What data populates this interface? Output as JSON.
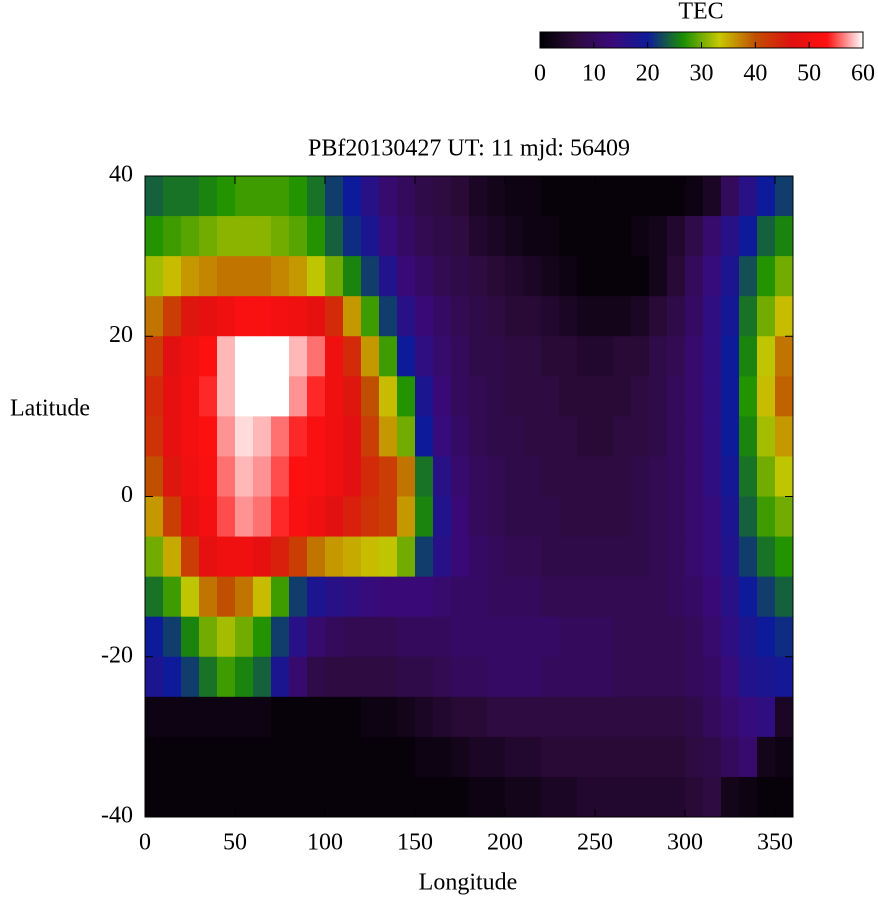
{
  "chart_data": {
    "type": "heatmap",
    "title": "PBf20130427  UT: 11  mjd: 56409",
    "xlabel": "Longitude",
    "ylabel": "Latitude",
    "colorbar_label": "TEC",
    "xlim": [
      0,
      360
    ],
    "ylim": [
      -40,
      40
    ],
    "zlim": [
      0,
      60
    ],
    "xticks": [
      0,
      50,
      100,
      150,
      200,
      250,
      300,
      350
    ],
    "yticks": [
      -40,
      -20,
      0,
      20,
      40
    ],
    "zticks": [
      0,
      10,
      20,
      30,
      40,
      50,
      60
    ],
    "colorscale": [
      "#000000",
      "#2d0b3d",
      "#3a0a7a",
      "#0d1a9a",
      "#1b9000",
      "#c8c800",
      "#c05000",
      "#e01010",
      "#ff1010",
      "#ffffff"
    ],
    "x": [
      5,
      15,
      25,
      35,
      45,
      55,
      65,
      75,
      85,
      95,
      105,
      115,
      125,
      135,
      145,
      155,
      165,
      175,
      185,
      195,
      205,
      215,
      225,
      235,
      245,
      255,
      265,
      275,
      285,
      295,
      305,
      315,
      325,
      335,
      345,
      355
    ],
    "y": [
      37.5,
      32.5,
      27.5,
      22.5,
      17.5,
      12.5,
      7.5,
      2.5,
      -2.5,
      -7.5,
      -12.5,
      -17.5,
      -22.5,
      -27.5,
      -32.5,
      -37.5
    ],
    "z": [
      [
        24,
        25,
        25,
        26,
        27,
        28,
        28,
        28,
        27,
        25,
        22,
        20,
        16,
        12,
        10,
        8,
        7,
        6,
        4,
        3,
        2,
        2,
        1,
        1,
        1,
        1,
        1,
        1,
        1,
        1,
        2,
        4,
        10,
        16,
        20,
        22
      ],
      [
        27,
        28,
        29,
        30,
        31,
        31,
        31,
        30,
        29,
        27,
        24,
        21,
        18,
        14,
        11,
        9,
        8,
        7,
        5,
        4,
        3,
        2,
        2,
        1,
        1,
        1,
        1,
        2,
        3,
        5,
        8,
        12,
        16,
        20,
        24,
        26
      ],
      [
        32,
        34,
        36,
        37,
        38,
        38,
        38,
        37,
        36,
        33,
        30,
        26,
        22,
        17,
        13,
        11,
        9,
        8,
        7,
        6,
        5,
        4,
        3,
        2,
        1,
        1,
        1,
        1,
        3,
        6,
        10,
        14,
        18,
        23,
        27,
        30
      ],
      [
        38,
        42,
        46,
        48,
        50,
        52,
        52,
        51,
        50,
        48,
        44,
        36,
        28,
        22,
        16,
        13,
        11,
        9,
        8,
        7,
        6,
        6,
        5,
        4,
        3,
        3,
        3,
        4,
        6,
        8,
        11,
        15,
        19,
        25,
        30,
        34
      ],
      [
        42,
        47,
        50,
        53,
        58,
        60,
        60,
        60,
        58,
        56,
        50,
        44,
        36,
        28,
        20,
        15,
        12,
        10,
        8,
        8,
        7,
        7,
        6,
        6,
        5,
        5,
        6,
        6,
        8,
        9,
        12,
        15,
        20,
        26,
        33,
        38
      ],
      [
        44,
        48,
        51,
        54,
        58,
        60,
        60,
        60,
        57,
        54,
        50,
        46,
        40,
        34,
        27,
        18,
        13,
        10,
        9,
        8,
        7,
        7,
        7,
        6,
        6,
        6,
        6,
        7,
        8,
        10,
        12,
        15,
        20,
        27,
        34,
        39
      ],
      [
        43,
        48,
        51,
        53,
        57,
        59,
        58,
        56,
        54,
        52,
        50,
        47,
        42,
        36,
        30,
        20,
        14,
        11,
        9,
        8,
        8,
        7,
        7,
        7,
        6,
        6,
        7,
        7,
        8,
        10,
        12,
        15,
        20,
        26,
        32,
        36
      ],
      [
        40,
        46,
        50,
        52,
        56,
        58,
        57,
        55,
        53,
        52,
        50,
        47,
        44,
        42,
        38,
        25,
        16,
        12,
        10,
        9,
        8,
        8,
        7,
        7,
        7,
        7,
        7,
        8,
        9,
        10,
        12,
        15,
        19,
        25,
        30,
        33
      ],
      [
        36,
        42,
        48,
        51,
        55,
        57,
        56,
        54,
        52,
        50,
        47,
        45,
        43,
        42,
        36,
        26,
        17,
        13,
        10,
        9,
        8,
        8,
        8,
        7,
        7,
        7,
        7,
        8,
        9,
        10,
        12,
        14,
        18,
        24,
        28,
        30
      ],
      [
        30,
        35,
        42,
        48,
        50,
        50,
        48,
        45,
        42,
        38,
        36,
        35,
        34,
        33,
        30,
        22,
        16,
        13,
        11,
        10,
        9,
        9,
        8,
        8,
        8,
        8,
        8,
        8,
        9,
        10,
        12,
        14,
        17,
        22,
        25,
        27
      ],
      [
        25,
        28,
        33,
        38,
        40,
        38,
        34,
        28,
        22,
        18,
        16,
        15,
        14,
        13,
        13,
        13,
        12,
        11,
        11,
        10,
        10,
        10,
        9,
        9,
        9,
        9,
        9,
        9,
        9,
        10,
        11,
        13,
        16,
        20,
        22,
        24
      ],
      [
        20,
        22,
        26,
        30,
        32,
        30,
        27,
        22,
        16,
        12,
        10,
        9,
        9,
        9,
        10,
        10,
        10,
        11,
        11,
        11,
        11,
        11,
        11,
        10,
        10,
        10,
        9,
        9,
        9,
        9,
        10,
        12,
        15,
        18,
        20,
        21
      ],
      [
        18,
        20,
        22,
        25,
        28,
        26,
        24,
        18,
        12,
        8,
        7,
        7,
        7,
        7,
        8,
        8,
        9,
        10,
        10,
        11,
        11,
        11,
        10,
        10,
        10,
        10,
        9,
        9,
        9,
        9,
        10,
        11,
        14,
        17,
        18,
        19
      ],
      [
        2,
        2,
        2,
        2,
        2,
        2,
        2,
        1,
        1,
        1,
        1,
        1,
        2,
        2,
        3,
        4,
        5,
        6,
        6,
        7,
        7,
        7,
        7,
        7,
        7,
        7,
        7,
        7,
        7,
        7,
        8,
        10,
        12,
        14,
        15,
        4
      ],
      [
        1,
        1,
        1,
        1,
        1,
        1,
        1,
        1,
        1,
        1,
        1,
        1,
        1,
        1,
        1,
        2,
        2,
        3,
        4,
        4,
        5,
        5,
        6,
        6,
        6,
        6,
        6,
        6,
        6,
        6,
        7,
        8,
        10,
        12,
        3,
        2
      ],
      [
        1,
        1,
        1,
        1,
        1,
        1,
        1,
        1,
        1,
        1,
        1,
        1,
        1,
        1,
        1,
        1,
        1,
        1,
        2,
        2,
        3,
        3,
        4,
        4,
        5,
        5,
        5,
        5,
        5,
        5,
        6,
        7,
        3,
        2,
        1,
        1
      ]
    ]
  }
}
